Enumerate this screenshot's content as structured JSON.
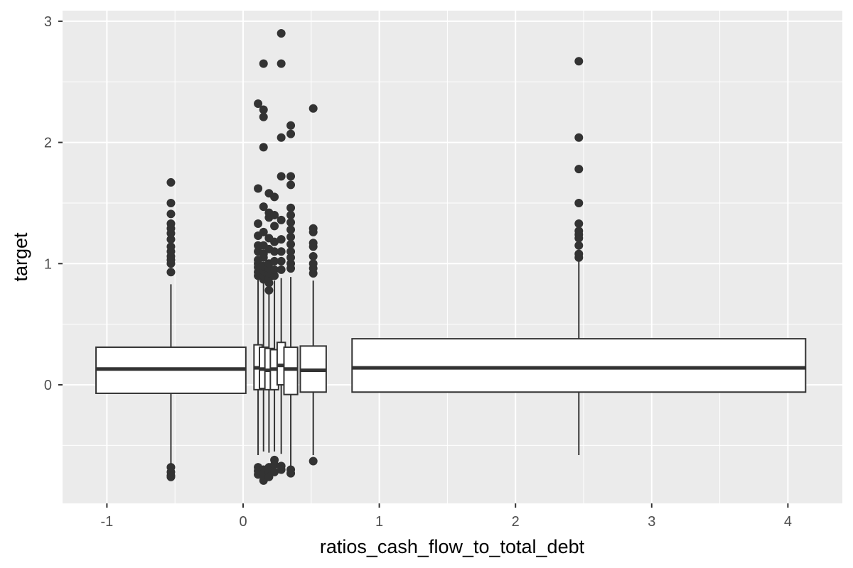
{
  "chart_data": {
    "type": "boxplot",
    "title": "",
    "xlabel": "ratios_cash_flow_to_total_debt",
    "ylabel": "target",
    "xlim": [
      -1.33,
      4.33
    ],
    "ylim": [
      -0.97,
      3.1
    ],
    "x_ticks": [
      -1,
      0,
      1,
      2,
      3,
      4
    ],
    "x_tick_labels": [
      "-1",
      "0",
      "1",
      "2",
      "3",
      "4"
    ],
    "y_ticks": [
      0,
      1,
      2,
      3
    ],
    "y_tick_labels": [
      "0",
      "1",
      "2",
      "3"
    ],
    "grid": true,
    "legend": "none",
    "colors": {
      "panel": "#ebebeb",
      "grid": "#ffffff",
      "box_fill": "#ffffff",
      "box_line": "#333333",
      "point": "#333333",
      "tick": "#4d4d4d"
    },
    "boxes": [
      {
        "x_left": -1.08,
        "x_right": 0.02,
        "q1": -0.07,
        "median": 0.13,
        "q3": 0.31,
        "whisker_low": -0.66,
        "whisker_high": 0.83,
        "outliers": [
          -0.68,
          -0.72,
          -0.75,
          -0.76,
          0.93,
          1.0,
          1.03,
          1.06,
          1.1,
          1.14,
          1.2,
          1.25,
          1.29,
          1.33,
          1.41,
          1.5,
          1.67
        ]
      },
      {
        "x_left": 0.08,
        "x_right": 0.14,
        "q1": -0.04,
        "median": 0.14,
        "q3": 0.33,
        "whisker_low": -0.58,
        "whisker_high": 0.87,
        "outliers": [
          -0.68,
          -0.71,
          -0.74,
          0.9,
          0.93,
          0.97,
          1.0,
          1.03,
          1.1,
          1.15,
          1.23,
          1.33,
          1.62,
          2.32
        ]
      },
      {
        "x_left": 0.12,
        "x_right": 0.18,
        "q1": -0.03,
        "median": 0.13,
        "q3": 0.31,
        "whisker_low": -0.55,
        "whisker_high": 0.85,
        "outliers": [
          -0.7,
          -0.73,
          -0.79,
          0.87,
          0.9,
          0.94,
          0.98,
          1.05,
          1.08,
          1.15,
          1.26,
          1.47,
          1.96,
          2.21,
          2.27,
          2.65
        ]
      },
      {
        "x_left": 0.16,
        "x_right": 0.22,
        "q1": -0.04,
        "median": 0.12,
        "q3": 0.3,
        "whisker_low": -0.56,
        "whisker_high": 0.8,
        "outliers": [
          -0.68,
          -0.72,
          -0.76,
          0.78,
          0.84,
          0.88,
          0.92,
          0.96,
          1.0,
          1.12,
          1.21,
          1.38,
          1.42,
          1.58
        ]
      },
      {
        "x_left": 0.2,
        "x_right": 0.26,
        "q1": -0.04,
        "median": 0.13,
        "q3": 0.29,
        "whisker_low": -0.55,
        "whisker_high": 0.86,
        "outliers": [
          -0.62,
          -0.66,
          -0.72,
          0.9,
          0.95,
          1.02,
          1.1,
          1.18,
          1.31,
          1.4,
          1.55
        ]
      },
      {
        "x_left": 0.25,
        "x_right": 0.31,
        "q1": 0.0,
        "median": 0.16,
        "q3": 0.35,
        "whisker_low": -0.57,
        "whisker_high": 0.88,
        "outliers": [
          -0.67,
          -0.7,
          0.95,
          1.02,
          1.1,
          1.2,
          1.36,
          1.72,
          2.04,
          2.65,
          2.9
        ]
      },
      {
        "x_left": 0.3,
        "x_right": 0.4,
        "q1": -0.08,
        "median": 0.13,
        "q3": 0.31,
        "whisker_low": -0.67,
        "whisker_high": 0.89,
        "outliers": [
          -0.7,
          -0.73,
          0.96,
          1.0,
          1.05,
          1.1,
          1.16,
          1.22,
          1.28,
          1.34,
          1.4,
          1.46,
          1.65,
          1.72,
          2.07,
          2.14
        ]
      },
      {
        "x_left": 0.42,
        "x_right": 0.61,
        "q1": -0.06,
        "median": 0.12,
        "q3": 0.32,
        "whisker_low": -0.58,
        "whisker_high": 0.86,
        "outliers": [
          -0.63,
          0.92,
          0.96,
          1.0,
          1.06,
          1.14,
          1.17,
          1.26,
          1.29,
          2.28
        ]
      },
      {
        "x_left": 0.8,
        "x_right": 4.13,
        "q1": -0.06,
        "median": 0.14,
        "q3": 0.38,
        "whisker_low": -0.58,
        "whisker_high": 1.02,
        "outliers": [
          1.05,
          1.08,
          1.15,
          1.21,
          1.24,
          1.27,
          1.33,
          1.5,
          1.78,
          2.04,
          2.67
        ]
      }
    ]
  }
}
